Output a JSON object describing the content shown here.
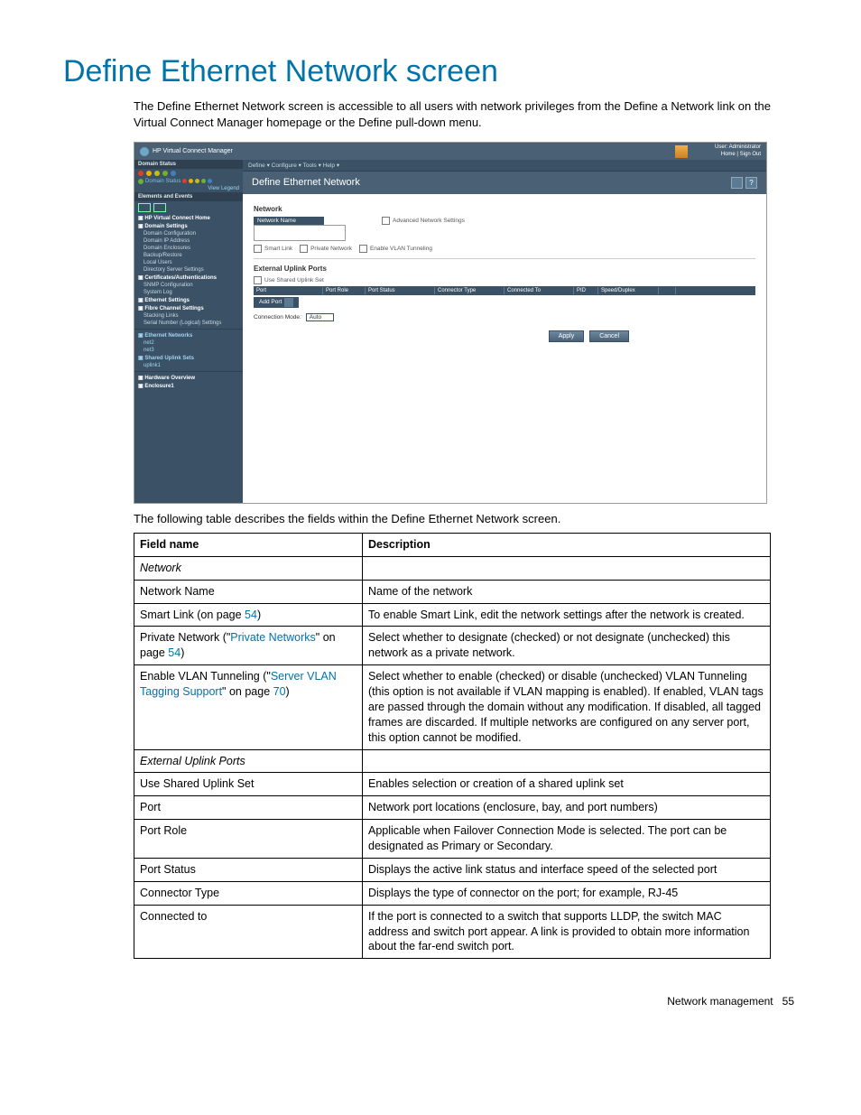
{
  "page": {
    "heading": "Define Ethernet Network screen",
    "intro": "The Define Ethernet Network screen is accessible to all users with network privileges from the Define a Network link on the Virtual Connect Manager homepage or the Define pull-down menu.",
    "caption": "The following table describes the fields within the Define Ethernet Network screen.",
    "footer_section": "Network management",
    "footer_page": "55"
  },
  "screenshot": {
    "app_title": "HP Virtual Connect Manager",
    "user_line1": "User: Administrator",
    "user_line2": "Home | Sign Out",
    "menu": "Define ▾    Configure ▾    Tools ▾    Help ▾",
    "side": {
      "domain_status_title": "Domain Status",
      "domain_status_row": "Domain Status",
      "view_legend": "View Legend",
      "elements_events_title": "Elements and Events",
      "items": [
        "HP Virtual Connect Home",
        "Domain Settings",
        "Domain Configuration",
        "Domain IP Address",
        "Domain Enclosures",
        "Backup/Restore",
        "Local Users",
        "Directory Server Settings",
        "Certificates/Authentications",
        "SNMP Configuration",
        "System Log",
        "Ethernet Settings",
        "Fibre Channel Settings",
        "Stacking Links",
        "Serial Number (Logical) Settings",
        "Ethernet Networks",
        "net2",
        "net3",
        "Shared Uplink Sets",
        "uplink1",
        "Hardware Overview",
        "Enclosure1"
      ]
    },
    "main": {
      "page_title": "Define Ethernet Network",
      "section_network": "Network",
      "network_name_label": "Network Name",
      "adv_settings": "Advanced Network Settings",
      "smart_link": "Smart Link",
      "private_network": "Private Network",
      "enable_vlan": "Enable VLAN Tunneling",
      "section_uplink": "External Uplink Ports",
      "use_shared": "Use Shared Uplink Set",
      "grid_cols": [
        "Port",
        "Port Role",
        "Port Status",
        "Connector Type",
        "Connected To",
        "PID",
        "Speed/Duplex",
        ""
      ],
      "add_port": "Add Port",
      "conn_mode_label": "Connection Mode:",
      "conn_mode_value": "Auto",
      "btn_apply": "Apply",
      "btn_cancel": "Cancel"
    },
    "status_colors": [
      "#e04020",
      "#f0b000",
      "#c0c010",
      "#70b030",
      "#4080c0"
    ]
  },
  "table": {
    "headers": [
      "Field name",
      "Description"
    ],
    "rows": [
      {
        "type": "section",
        "name": "Network"
      },
      {
        "name": "Network Name",
        "desc": "Name of the network"
      },
      {
        "name_parts": [
          "Smart Link (on page ",
          {
            "link": "54"
          },
          ")"
        ],
        "desc": "To enable Smart Link, edit the network settings after the network is created."
      },
      {
        "name_parts": [
          "Private Network (\"",
          {
            "link": "Private Networks"
          },
          "\" on page ",
          {
            "link": "54"
          },
          ")"
        ],
        "desc": "Select whether to designate (checked) or not designate (unchecked) this network as a private network."
      },
      {
        "name_parts": [
          "Enable VLAN Tunneling (\"",
          {
            "link": "Server VLAN Tagging Support"
          },
          "\" on page ",
          {
            "link": "70"
          },
          ")"
        ],
        "desc": "Select whether to enable (checked) or disable (unchecked) VLAN Tunneling (this option is not available if VLAN mapping is enabled). If enabled, VLAN tags are passed through the domain without any modification. If disabled, all tagged frames are discarded. If multiple networks are configured on any server port, this option cannot be modified."
      },
      {
        "type": "section",
        "name": "External Uplink Ports"
      },
      {
        "name": "Use Shared Uplink Set",
        "desc": "Enables selection or creation of a shared uplink set"
      },
      {
        "name": "Port",
        "desc": "Network port locations (enclosure, bay, and port numbers)"
      },
      {
        "name": "Port Role",
        "desc": "Applicable when Failover Connection Mode is selected. The port can be designated as Primary or Secondary."
      },
      {
        "name": "Port Status",
        "desc": "Displays the active link status and interface speed of the selected port"
      },
      {
        "name": "Connector Type",
        "desc": "Displays the type of connector on the port; for example, RJ-45"
      },
      {
        "name": "Connected to",
        "desc": "If the port is connected to a switch that supports LLDP, the switch MAC address and switch port appear. A link is provided to obtain more information about the far-end switch port."
      }
    ]
  }
}
